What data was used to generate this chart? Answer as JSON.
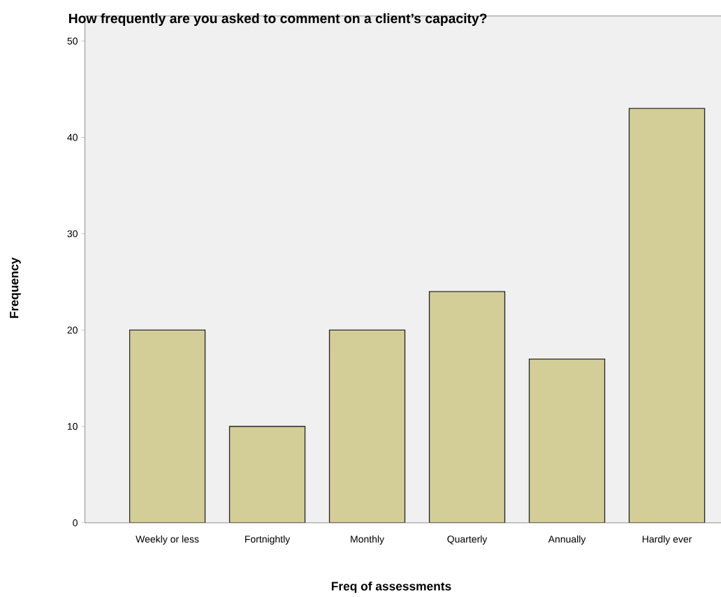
{
  "chart_data": {
    "type": "bar",
    "title": "How frequently are you asked to comment on a client’s capacity?",
    "xlabel": "Freq of assessments",
    "ylabel": "Frequency",
    "categories": [
      "Weekly or less",
      "Fortnightly",
      "Monthly",
      "Quarterly",
      "Annually",
      "Hardly ever"
    ],
    "values": [
      20,
      10,
      20,
      24,
      17,
      43
    ],
    "color": "#d3ce97",
    "ylim": [
      0,
      52.6
    ],
    "yticks": [
      0,
      10,
      20,
      30,
      40,
      50
    ]
  }
}
